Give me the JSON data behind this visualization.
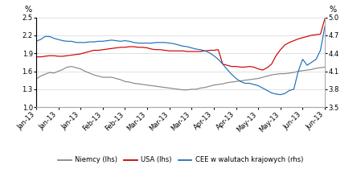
{
  "title": "",
  "ylabel_left": "%",
  "ylabel_right": "%",
  "ylim_left": [
    1.0,
    2.5
  ],
  "ylim_right": [
    3.5,
    5.0
  ],
  "yticks_left": [
    1.0,
    1.3,
    1.6,
    1.9,
    2.2,
    2.5
  ],
  "yticks_right": [
    3.5,
    3.8,
    4.1,
    4.4,
    4.7,
    5.0
  ],
  "color_germany": "#888888",
  "color_usa": "#cc0000",
  "color_cee": "#1f6fba",
  "legend_labels": [
    "Niemcy (lhs)",
    "USA (lhs)",
    "CEE w walutach krajowych (rhs)"
  ],
  "x_tick_labels": [
    "Jan-13",
    "Jan-13",
    "Jan-13",
    "Feb-13",
    "Feb-13",
    "Mar-13",
    "Mar-13",
    "Mar-13",
    "Apr-13",
    "Apr-13",
    "May-13",
    "May-13",
    "Jun-13",
    "Jun-13"
  ],
  "germany_data": [
    1.47,
    1.52,
    1.55,
    1.58,
    1.57,
    1.6,
    1.63,
    1.67,
    1.68,
    1.66,
    1.64,
    1.6,
    1.57,
    1.54,
    1.52,
    1.5,
    1.5,
    1.5,
    1.48,
    1.46,
    1.43,
    1.42,
    1.4,
    1.39,
    1.38,
    1.37,
    1.36,
    1.35,
    1.34,
    1.33,
    1.32,
    1.31,
    1.3,
    1.29,
    1.29,
    1.3,
    1.3,
    1.32,
    1.33,
    1.35,
    1.37,
    1.38,
    1.39,
    1.41,
    1.42,
    1.43,
    1.44,
    1.45,
    1.46,
    1.47,
    1.48,
    1.5,
    1.52,
    1.54,
    1.55,
    1.56,
    1.56,
    1.57,
    1.58,
    1.6,
    1.61,
    1.62,
    1.63,
    1.65,
    1.66,
    1.67
  ],
  "usa_data": [
    1.84,
    1.84,
    1.85,
    1.86,
    1.86,
    1.85,
    1.85,
    1.86,
    1.87,
    1.88,
    1.89,
    1.91,
    1.93,
    1.95,
    1.95,
    1.96,
    1.97,
    1.98,
    1.99,
    2.0,
    2.0,
    2.01,
    2.01,
    2.0,
    2.0,
    1.99,
    1.97,
    1.96,
    1.96,
    1.95,
    1.94,
    1.94,
    1.94,
    1.94,
    1.93,
    1.93,
    1.93,
    1.93,
    1.94,
    1.95,
    1.95,
    1.96,
    1.72,
    1.7,
    1.68,
    1.68,
    1.67,
    1.67,
    1.68,
    1.67,
    1.64,
    1.62,
    1.66,
    1.72,
    1.86,
    1.96,
    2.04,
    2.08,
    2.11,
    2.14,
    2.16,
    2.18,
    2.2,
    2.21,
    2.22,
    2.48
  ],
  "cee_data": [
    4.6,
    4.63,
    4.68,
    4.68,
    4.65,
    4.63,
    4.61,
    4.6,
    4.6,
    4.58,
    4.58,
    4.58,
    4.59,
    4.59,
    4.6,
    4.6,
    4.61,
    4.62,
    4.61,
    4.6,
    4.61,
    4.6,
    4.58,
    4.57,
    4.57,
    4.57,
    4.57,
    4.58,
    4.58,
    4.58,
    4.57,
    4.56,
    4.54,
    4.52,
    4.51,
    4.49,
    4.47,
    4.46,
    4.44,
    4.41,
    4.36,
    4.3,
    4.22,
    4.13,
    4.05,
    3.98,
    3.93,
    3.9,
    3.9,
    3.88,
    3.86,
    3.82,
    3.78,
    3.74,
    3.72,
    3.71,
    3.73,
    3.78,
    3.8,
    4.1,
    4.3,
    4.2,
    4.25,
    4.3,
    4.45,
    4.85
  ],
  "figsize": [
    4.49,
    2.15
  ],
  "dpi": 100,
  "line_width": 0.85,
  "tick_fontsize": 6,
  "legend_fontsize": 6
}
